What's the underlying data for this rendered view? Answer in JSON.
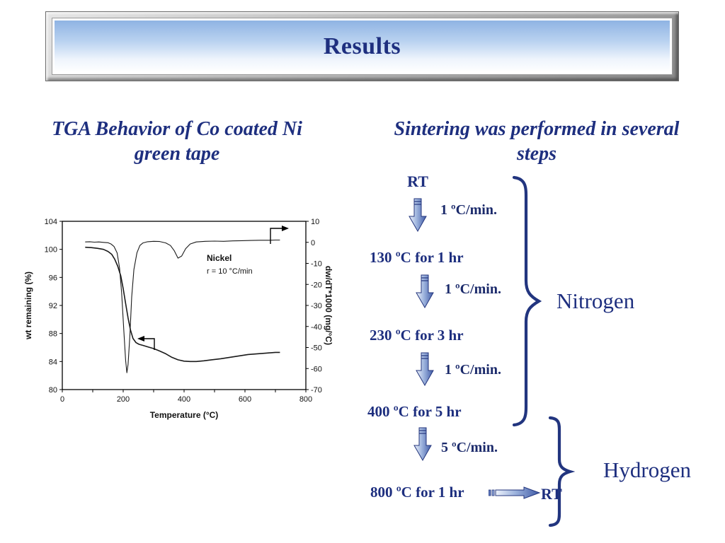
{
  "slide": {
    "title": "Results",
    "left_heading": "TGA Behavior of Co coated Ni green tape",
    "right_heading": "Sintering was performed in several steps"
  },
  "chart_data": {
    "type": "line",
    "xlabel": "Temperature (°C)",
    "ylabel_left": "wt remaining (%)",
    "ylabel_right": "dw/dT*1000 (mg/°C)",
    "xlim": [
      0,
      800
    ],
    "x_minor_step": 100,
    "ylim_left": [
      80,
      104
    ],
    "ylim_right": [
      -70,
      10
    ],
    "x_ticks": [
      0,
      200,
      400,
      600,
      800
    ],
    "left_ticks": [
      104,
      100,
      96,
      92,
      88,
      84,
      80
    ],
    "right_ticks": [
      10,
      0,
      -10,
      -20,
      -30,
      -40,
      -50,
      -60,
      -70
    ],
    "legend": false,
    "grid": false,
    "annotation": {
      "line1": "Nickel",
      "line2": "r = 10 °C/min"
    },
    "series": [
      {
        "name": "wt remaining (%)",
        "axis": "left",
        "x": [
          75,
          95,
          115,
          135,
          150,
          162,
          172,
          182,
          192,
          200,
          208,
          216,
          224,
          232,
          242,
          252,
          265,
          280,
          300,
          320,
          340,
          360,
          380,
          400,
          420,
          440,
          465,
          490,
          520,
          550,
          580,
          610,
          640,
          670,
          700,
          715
        ],
        "y": [
          100.3,
          100.25,
          100.15,
          100.0,
          99.7,
          99.3,
          98.6,
          97.6,
          96.2,
          94.4,
          92.3,
          90.2,
          88.5,
          87.3,
          86.7,
          86.45,
          86.3,
          86.1,
          85.85,
          85.5,
          85.1,
          84.6,
          84.25,
          84.05,
          84.0,
          84.0,
          84.1,
          84.25,
          84.4,
          84.6,
          84.8,
          85.0,
          85.1,
          85.2,
          85.3,
          85.3
        ]
      },
      {
        "name": "dw/dT*1000 (mg/°C)",
        "axis": "right",
        "x": [
          75,
          90,
          105,
          120,
          135,
          150,
          160,
          170,
          180,
          188,
          195,
          202,
          208,
          212,
          216,
          222,
          228,
          235,
          245,
          255,
          265,
          280,
          300,
          320,
          340,
          355,
          368,
          380,
          392,
          405,
          420,
          440,
          470,
          500,
          530,
          560,
          590,
          620,
          650,
          680,
          700,
          715
        ],
        "y": [
          0.2,
          0.3,
          0.1,
          0.2,
          0.0,
          -0.2,
          -0.8,
          -2,
          -5,
          -12,
          -24,
          -42,
          -56,
          -62,
          -58,
          -44,
          -26,
          -13,
          -5,
          -1.5,
          -0.3,
          0.3,
          0.5,
          0.4,
          -0.3,
          -1.5,
          -4,
          -7.5,
          -6.5,
          -3,
          -0.8,
          0.2,
          0.5,
          0.6,
          0.5,
          0.7,
          0.8,
          0.9,
          1.0,
          1.0,
          1.1,
          1.1
        ]
      }
    ]
  },
  "process": {
    "start_label": "RT",
    "end_label": "RT",
    "steps": [
      {
        "rate": "1 ºC/min.",
        "hold": "130 ºC for 1 hr"
      },
      {
        "rate": "1 ºC/min.",
        "hold": "230 ºC for 3 hr"
      },
      {
        "rate": "1 ºC/min.",
        "hold": "400 ºC for 5 hr"
      },
      {
        "rate": "5 ºC/min.",
        "hold": "800 ºC for 1 hr"
      }
    ],
    "atmospheres": [
      {
        "label": "Nitrogen"
      },
      {
        "label": "Hydrogen"
      }
    ]
  },
  "colors": {
    "navy": "#1e2f7f",
    "arrow_outline": "#24367d",
    "arrow_light": "#eef3fb",
    "arrow_dark": "#4a66b0"
  }
}
